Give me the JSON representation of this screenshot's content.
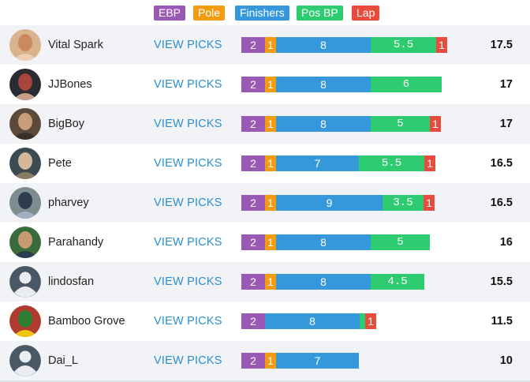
{
  "legend": [
    {
      "key": "ebp",
      "label": "EBP",
      "color": "#9b59b6"
    },
    {
      "key": "pole",
      "label": "Pole",
      "color": "#f39c12"
    },
    {
      "key": "finishers",
      "label": "Finishers",
      "color": "#3498db"
    },
    {
      "key": "posbp",
      "label": "Pos BP",
      "color": "#2ecc71"
    },
    {
      "key": "lap",
      "label": "Lap",
      "color": "#e74c3c"
    }
  ],
  "link_label": "VIEW PICKS",
  "rows": [
    {
      "name": "Vital Spark",
      "total": "17.5",
      "segments": [
        {
          "type": "ebp",
          "label": "2"
        },
        {
          "type": "pole",
          "label": "1"
        },
        {
          "type": "finishers",
          "label": "8"
        },
        {
          "type": "posbp",
          "label": "5.5"
        },
        {
          "type": "lap",
          "label": "1"
        }
      ]
    },
    {
      "name": "JJBones",
      "total": "17",
      "segments": [
        {
          "type": "ebp",
          "label": "2"
        },
        {
          "type": "pole",
          "label": "1"
        },
        {
          "type": "finishers",
          "label": "8"
        },
        {
          "type": "posbp",
          "label": "6"
        }
      ]
    },
    {
      "name": "BigBoy",
      "total": "17",
      "segments": [
        {
          "type": "ebp",
          "label": "2"
        },
        {
          "type": "pole",
          "label": "1"
        },
        {
          "type": "finishers",
          "label": "8"
        },
        {
          "type": "posbp",
          "label": "5"
        },
        {
          "type": "lap",
          "label": "1"
        }
      ]
    },
    {
      "name": "Pete",
      "total": "16.5",
      "segments": [
        {
          "type": "ebp",
          "label": "2"
        },
        {
          "type": "pole",
          "label": "1"
        },
        {
          "type": "finishers",
          "label": "7"
        },
        {
          "type": "posbp",
          "label": "5.5"
        },
        {
          "type": "lap",
          "label": "1"
        }
      ]
    },
    {
      "name": "pharvey",
      "total": "16.5",
      "segments": [
        {
          "type": "ebp",
          "label": "2"
        },
        {
          "type": "pole",
          "label": "1"
        },
        {
          "type": "finishers",
          "label": "9"
        },
        {
          "type": "posbp",
          "label": "3.5"
        },
        {
          "type": "lap",
          "label": "1"
        }
      ]
    },
    {
      "name": "Parahandy",
      "total": "16",
      "segments": [
        {
          "type": "ebp",
          "label": "2"
        },
        {
          "type": "pole",
          "label": "1"
        },
        {
          "type": "finishers",
          "label": "8"
        },
        {
          "type": "posbp",
          "label": "5"
        }
      ]
    },
    {
      "name": "lindosfan",
      "total": "15.5",
      "segments": [
        {
          "type": "ebp",
          "label": "2"
        },
        {
          "type": "pole",
          "label": "1"
        },
        {
          "type": "finishers",
          "label": "8"
        },
        {
          "type": "posbp",
          "label": "4.5"
        }
      ]
    },
    {
      "name": "Bamboo Grove",
      "total": "11.5",
      "segments": [
        {
          "type": "ebp",
          "label": "2"
        },
        {
          "type": "finishers",
          "label": "8"
        },
        {
          "type": "posbp",
          "label": ""
        },
        {
          "type": "lap",
          "label": "1"
        }
      ]
    },
    {
      "name": "Dai_L",
      "total": "10",
      "segments": [
        {
          "type": "ebp",
          "label": "2"
        },
        {
          "type": "pole",
          "label": "1"
        },
        {
          "type": "finishers",
          "label": "7"
        }
      ]
    }
  ]
}
